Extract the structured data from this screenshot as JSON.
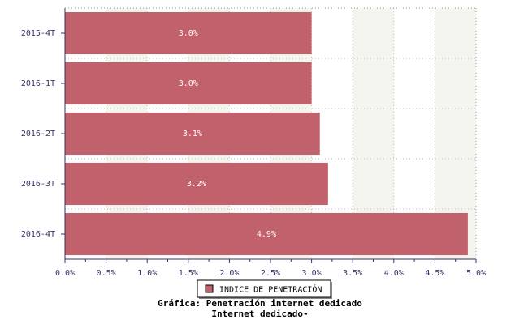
{
  "chart_data": {
    "type": "hbar",
    "title": "Gráfica: Penetración internet dedicado",
    "subtitle": "Internet dedicado-",
    "categories": [
      "2015-4T",
      "2016-1T",
      "2016-2T",
      "2016-3T",
      "2016-4T"
    ],
    "series": [
      {
        "name": "INDICE DE PENETRACIÓN",
        "color": "#c0616b",
        "values": [
          3.0,
          3.0,
          3.1,
          3.2,
          4.9
        ],
        "value_labels": [
          "3.0%",
          "3.0%",
          "3.1%",
          "3.2%",
          "4.9%"
        ]
      }
    ],
    "xlim": [
      0,
      5
    ],
    "xticks": [
      {
        "value": 0,
        "label": "0.0%"
      },
      {
        "value": 0.5,
        "label": "0.5%"
      },
      {
        "value": 1,
        "label": "1.0%"
      },
      {
        "value": 1.5,
        "label": "1.5%"
      },
      {
        "value": 2,
        "label": "2.0%"
      },
      {
        "value": 2.5,
        "label": "2.5%"
      },
      {
        "value": 3,
        "label": "3.0%"
      },
      {
        "value": 3.5,
        "label": "3.5%"
      },
      {
        "value": 4,
        "label": "4.0%"
      },
      {
        "value": 4.5,
        "label": "4.5%"
      },
      {
        "value": 5,
        "label": "5.0%"
      }
    ],
    "grid": true,
    "legend": "bottom"
  }
}
